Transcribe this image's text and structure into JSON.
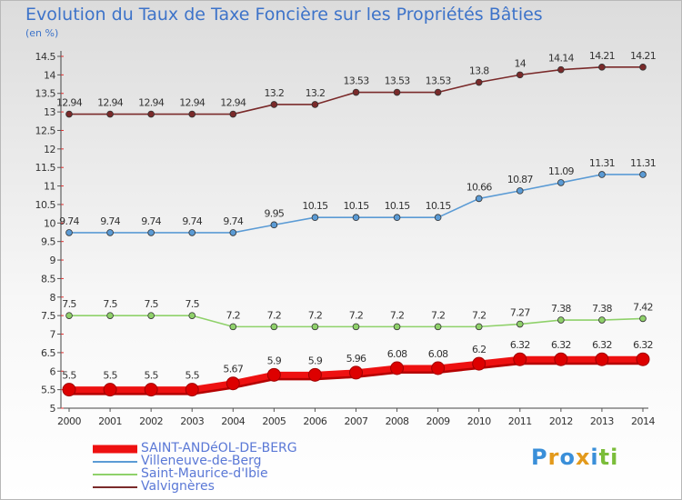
{
  "title": "Evolution du Taux de Taxe Foncière sur les Propriétés Bâties",
  "subtitle": "(en %)",
  "brand": {
    "letters": [
      "P",
      "r",
      "o",
      "x",
      "i",
      "t",
      "i"
    ],
    "colors": [
      "#3a8fd9",
      "#e39a1c",
      "#3a8fd9",
      "#e39a1c",
      "#3a8fd9",
      "#7bbd3a",
      "#7bbd3a"
    ]
  },
  "chart_data": {
    "type": "line",
    "title": "Evolution du Taux de Taxe Foncière sur les Propriétés Bâties",
    "ylabel": "(en %)",
    "xlabel": "",
    "ylim": [
      5,
      14.5
    ],
    "yticks": [
      "5",
      "5.5",
      "6",
      "6.5",
      "7",
      "7.5",
      "8",
      "8.5",
      "9",
      "9.5",
      "10",
      "10.5",
      "11",
      "11.5",
      "12",
      "12.5",
      "13",
      "13.5",
      "14",
      "14.5"
    ],
    "x": [
      "2000",
      "2001",
      "2002",
      "2003",
      "2004",
      "2005",
      "2006",
      "2007",
      "2008",
      "2009",
      "2010",
      "2011",
      "2012",
      "2013",
      "2014"
    ],
    "grid": false,
    "legend_position": "bottom-left",
    "series": [
      {
        "name": "Valvignères",
        "color": "#7a2a2a",
        "values": [
          12.94,
          12.94,
          12.94,
          12.94,
          12.94,
          13.2,
          13.2,
          13.53,
          13.53,
          13.53,
          13.8,
          14,
          14.14,
          14.21,
          14.21
        ],
        "labels": [
          "12.94",
          "12.94",
          "12.94",
          "12.94",
          "12.94",
          "13.2",
          "13.2",
          "13.53",
          "13.53",
          "13.53",
          "13.8",
          "14",
          "14.14",
          "14.21",
          "14.21"
        ]
      },
      {
        "name": "Villeneuve-de-Berg",
        "color": "#5b9bd5",
        "values": [
          9.74,
          9.74,
          9.74,
          9.74,
          9.74,
          9.95,
          10.15,
          10.15,
          10.15,
          10.15,
          10.66,
          10.87,
          11.09,
          11.31,
          11.31
        ],
        "labels": [
          "9.74",
          "9.74",
          "9.74",
          "9.74",
          "9.74",
          "9.95",
          "10.15",
          "10.15",
          "10.15",
          "10.15",
          "10.66",
          "10.87",
          "11.09",
          "11.31",
          "11.31"
        ]
      },
      {
        "name": "Saint-Maurice-d'Ibie",
        "color": "#8fd16a",
        "values": [
          7.5,
          7.5,
          7.5,
          7.5,
          7.2,
          7.2,
          7.2,
          7.2,
          7.2,
          7.2,
          7.2,
          7.27,
          7.38,
          7.38,
          7.42
        ],
        "labels": [
          "7.5",
          "7.5",
          "7.5",
          "7.5",
          "7.2",
          "7.2",
          "7.2",
          "7.2",
          "7.2",
          "7.2",
          "7.2",
          "7.27",
          "7.38",
          "7.38",
          "7.42"
        ]
      },
      {
        "name": "SAINT-ANDéOL-DE-BERG",
        "color": "#ee1111",
        "values": [
          5.5,
          5.5,
          5.5,
          5.5,
          5.67,
          5.9,
          5.9,
          5.96,
          6.08,
          6.08,
          6.2,
          6.32,
          6.32,
          6.32,
          6.32
        ],
        "labels": [
          "5.5",
          "5.5",
          "5.5",
          "5.5",
          "5.67",
          "5.9",
          "5.9",
          "5.96",
          "6.08",
          "6.08",
          "6.2",
          "6.32",
          "6.32",
          "6.32",
          "6.32"
        ]
      }
    ],
    "legend_order": [
      "SAINT-ANDéOL-DE-BERG",
      "Villeneuve-de-Berg",
      "Saint-Maurice-d'Ibie",
      "Valvignères"
    ]
  }
}
